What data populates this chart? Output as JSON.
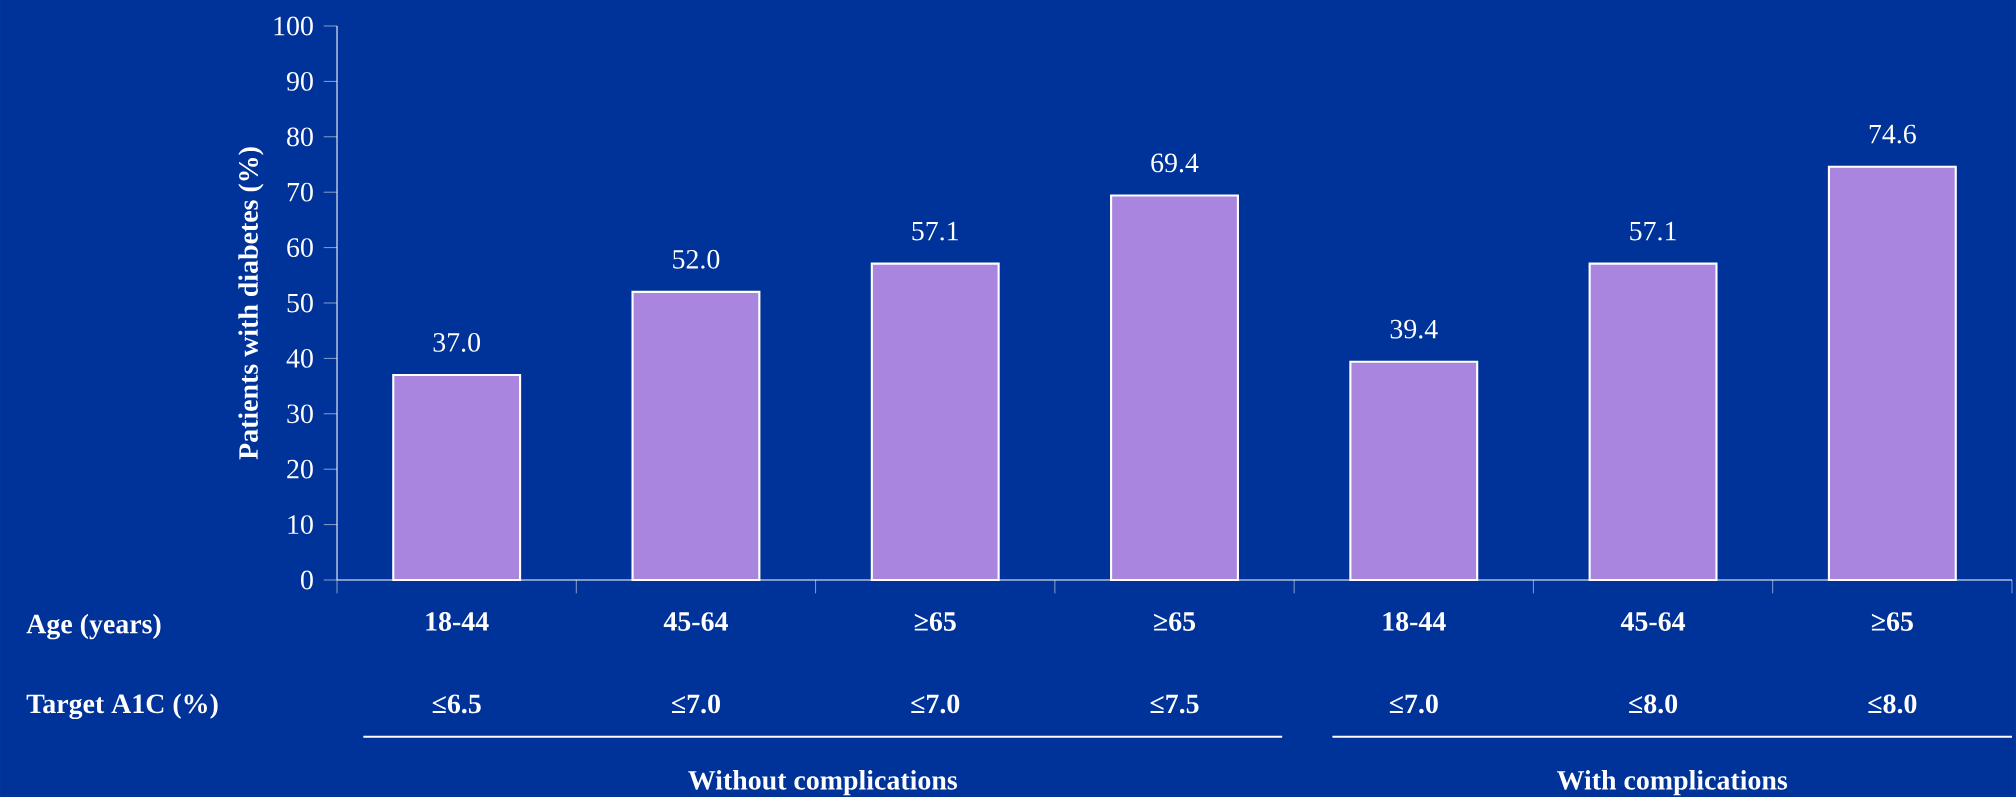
{
  "chart_data": {
    "type": "bar",
    "ylabel": "Patients with diabetes (%)",
    "categories": [
      "18-44",
      "45-64",
      "≥65",
      "≥65",
      "18-44",
      "45-64",
      "≥65"
    ],
    "values": [
      37.0,
      52.0,
      57.1,
      69.4,
      39.4,
      57.1,
      74.6
    ],
    "color": "#a985e0",
    "ylim": [
      0,
      100
    ],
    "yticks": [
      0,
      10,
      20,
      30,
      40,
      50,
      60,
      70,
      80,
      90,
      100
    ],
    "grid": false,
    "value_labels": [
      "37.0",
      "52.0",
      "57.1",
      "69.4",
      "39.4",
      "57.1",
      "74.6"
    ],
    "annotations": [
      "Age (years)",
      "Target A1C (%)",
      "≤6.5",
      "≤7.0",
      "≤7.0",
      "≤7.5",
      "≤7.0",
      "≤8.0",
      "≤8.0",
      "Without complications",
      "With complications"
    ]
  }
}
